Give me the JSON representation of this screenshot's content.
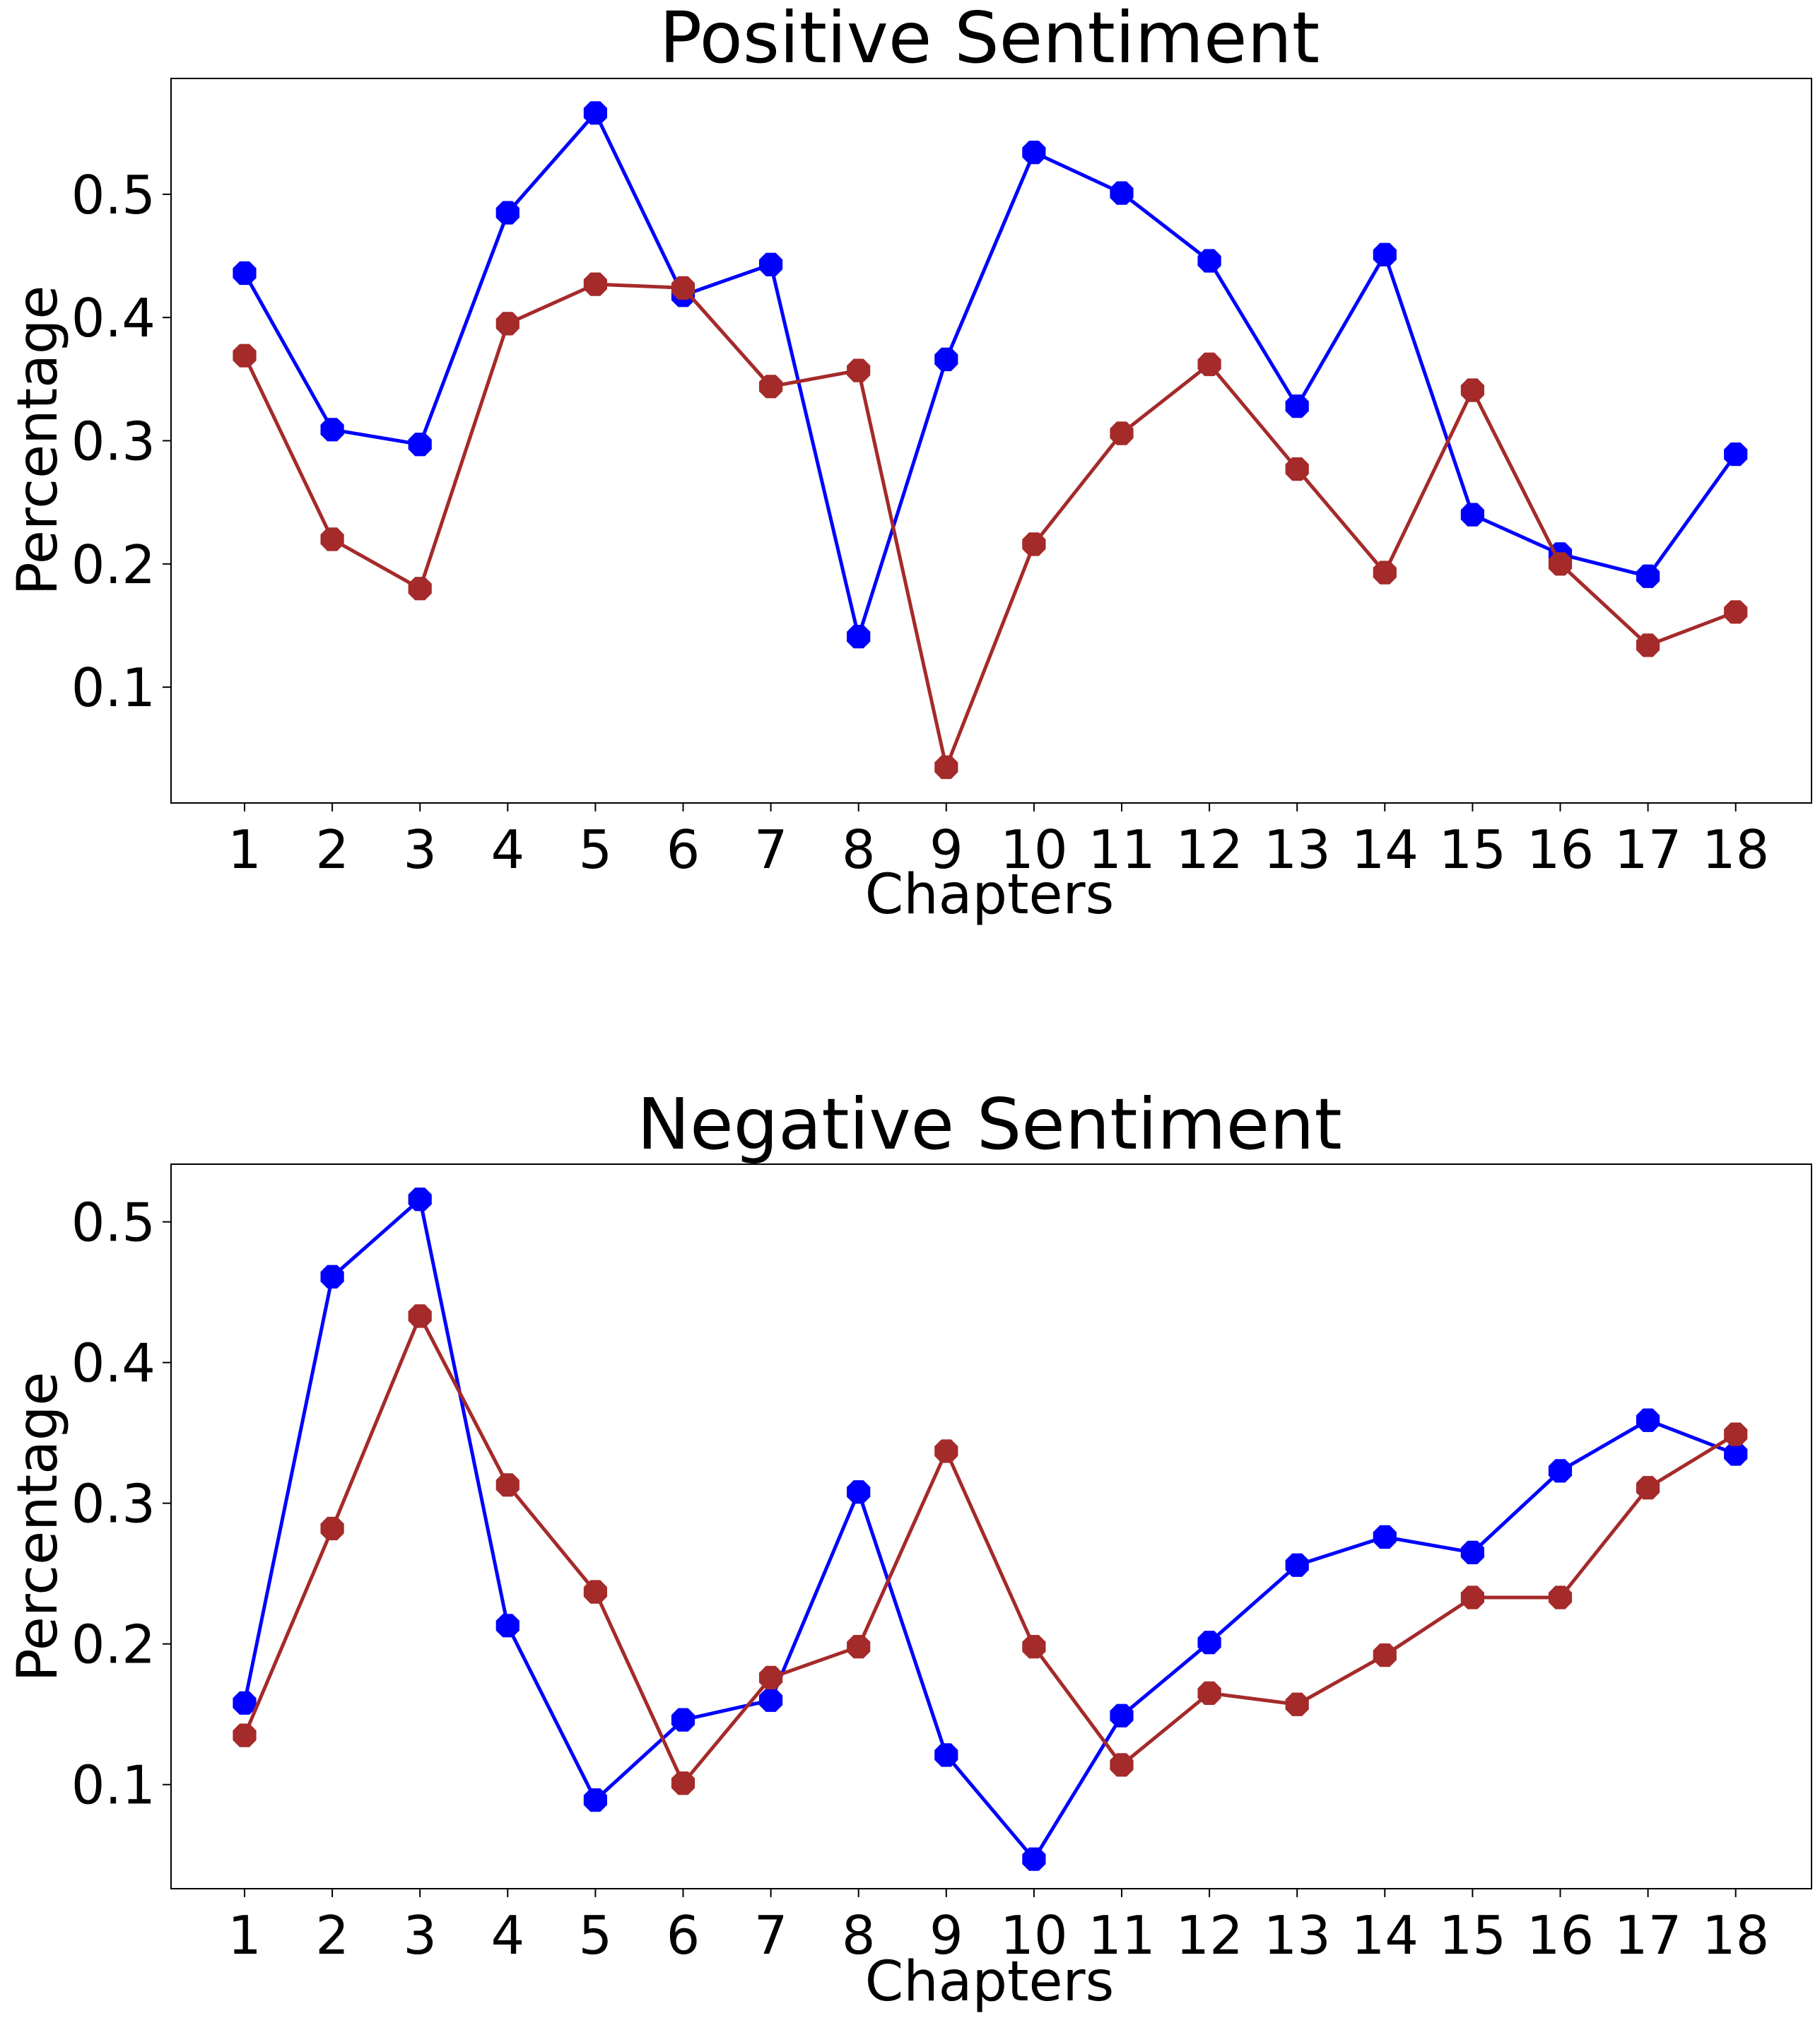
{
  "chart_data": [
    {
      "type": "line",
      "title": "Positive Sentiment",
      "xlabel": "Chapters",
      "ylabel": "Percentage",
      "categories": [
        "1",
        "2",
        "3",
        "4",
        "5",
        "6",
        "7",
        "8",
        "9",
        "10",
        "11",
        "12",
        "13",
        "14",
        "15",
        "16",
        "17",
        "18"
      ],
      "yticks": [
        "0.1",
        "0.2",
        "0.3",
        "0.4",
        "0.5"
      ],
      "ylim": [
        0.006,
        0.594
      ],
      "grid": false,
      "series": [
        {
          "color": "#0000ff",
          "marker": "octagon",
          "values": [
            0.436,
            0.309,
            0.297,
            0.485,
            0.566,
            0.418,
            0.443,
            0.141,
            0.366,
            0.534,
            0.501,
            0.446,
            0.328,
            0.451,
            0.24,
            0.208,
            0.19,
            0.289
          ]
        },
        {
          "color": "#a52a2a",
          "marker": "octagon",
          "values": [
            0.369,
            0.22,
            0.18,
            0.395,
            0.427,
            0.424,
            0.344,
            0.357,
            0.035,
            0.216,
            0.306,
            0.362,
            0.277,
            0.193,
            0.341,
            0.2,
            0.134,
            0.161
          ]
        }
      ]
    },
    {
      "type": "line",
      "title": "Negative Sentiment",
      "xlabel": "Chapters",
      "ylabel": "Percentage",
      "categories": [
        "1",
        "2",
        "3",
        "4",
        "5",
        "6",
        "7",
        "8",
        "9",
        "10",
        "11",
        "12",
        "13",
        "14",
        "15",
        "16",
        "17",
        "18"
      ],
      "yticks": [
        "0.1",
        "0.2",
        "0.3",
        "0.4",
        "0.5"
      ],
      "ylim": [
        0.026,
        0.541
      ],
      "grid": false,
      "series": [
        {
          "color": "#0000ff",
          "marker": "octagon",
          "values": [
            0.158,
            0.461,
            0.516,
            0.213,
            0.089,
            0.146,
            0.16,
            0.308,
            0.121,
            0.047,
            0.149,
            0.201,
            0.256,
            0.276,
            0.265,
            0.323,
            0.359,
            0.335
          ]
        },
        {
          "color": "#a52a2a",
          "marker": "octagon",
          "values": [
            0.135,
            0.282,
            0.433,
            0.313,
            0.237,
            0.101,
            0.176,
            0.198,
            0.337,
            0.198,
            0.114,
            0.165,
            0.157,
            0.192,
            0.233,
            0.233,
            0.311,
            0.349
          ]
        }
      ]
    }
  ]
}
